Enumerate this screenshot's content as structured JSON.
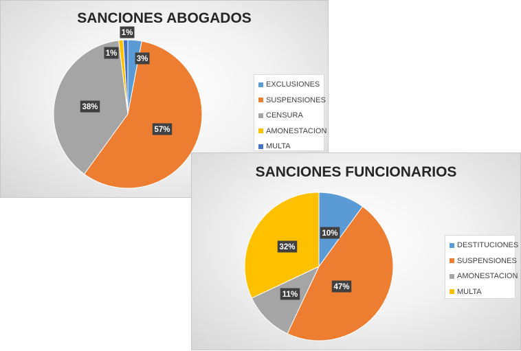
{
  "chart_data": [
    {
      "type": "pie",
      "title": "SANCIONES ABOGADOS",
      "categories": [
        "EXCLUSIONES",
        "SUSPENSIONES",
        "CENSURA",
        "AMONESTACION",
        "MULTA"
      ],
      "values": [
        3,
        57,
        38,
        1,
        1
      ],
      "labels": [
        "3%",
        "57%",
        "38%",
        "1%",
        "1%"
      ],
      "colors": [
        "#5b9bd5",
        "#ed7d31",
        "#a5a5a5",
        "#ffc000",
        "#4472c4"
      ],
      "legend_position": "right"
    },
    {
      "type": "pie",
      "title": "SANCIONES FUNCIONARIOS",
      "categories": [
        "DESTITUCIONES",
        "SUSPENSIONES",
        "AMONESTACION",
        "MULTA"
      ],
      "values": [
        10,
        47,
        11,
        32
      ],
      "labels": [
        "10%",
        "47%",
        "11%",
        "32%"
      ],
      "colors": [
        "#5b9bd5",
        "#ed7d31",
        "#a5a5a5",
        "#ffc000"
      ],
      "legend_position": "right"
    }
  ]
}
